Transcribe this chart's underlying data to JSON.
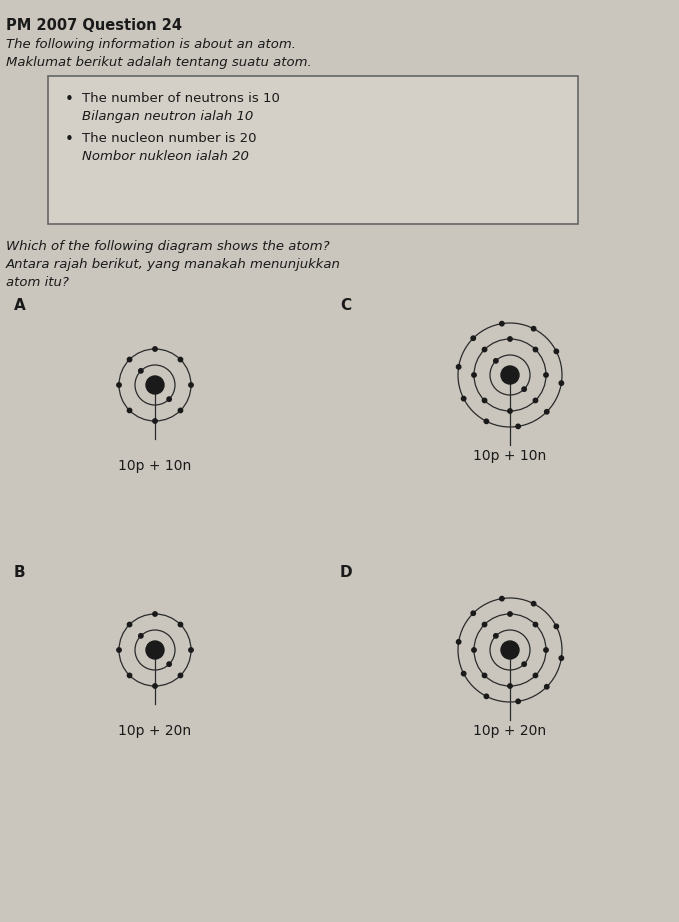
{
  "title": "PM 2007 Question 24",
  "intro_line1": "The following information is about an atom.",
  "intro_line2": "Maklumat berikut adalah tentang suatu atom.",
  "box_bullets": [
    "The number of neutrons is 10",
    "Bilangan neutron ialah 10",
    "The nucleon number is 20",
    "Nombor nukleon ialah 20"
  ],
  "question_line1": "Which of the following diagram shows the atom?",
  "question_line2": "Antara rajah berikut, yang manakah menunjukkan",
  "question_line3": "atom itu?",
  "labels": [
    "10p + 10n",
    "10p + 20n",
    "10p + 10n",
    "10p + 20n"
  ],
  "bg_color": "#cac6be",
  "text_color": "#1a1a1a",
  "orbit_color": "#2a2a2a",
  "nucleus_color": "#1a1a1a",
  "electron_color": "#1a1a1a",
  "box_bg": "#d4d0c8",
  "box_edge": "#666666"
}
